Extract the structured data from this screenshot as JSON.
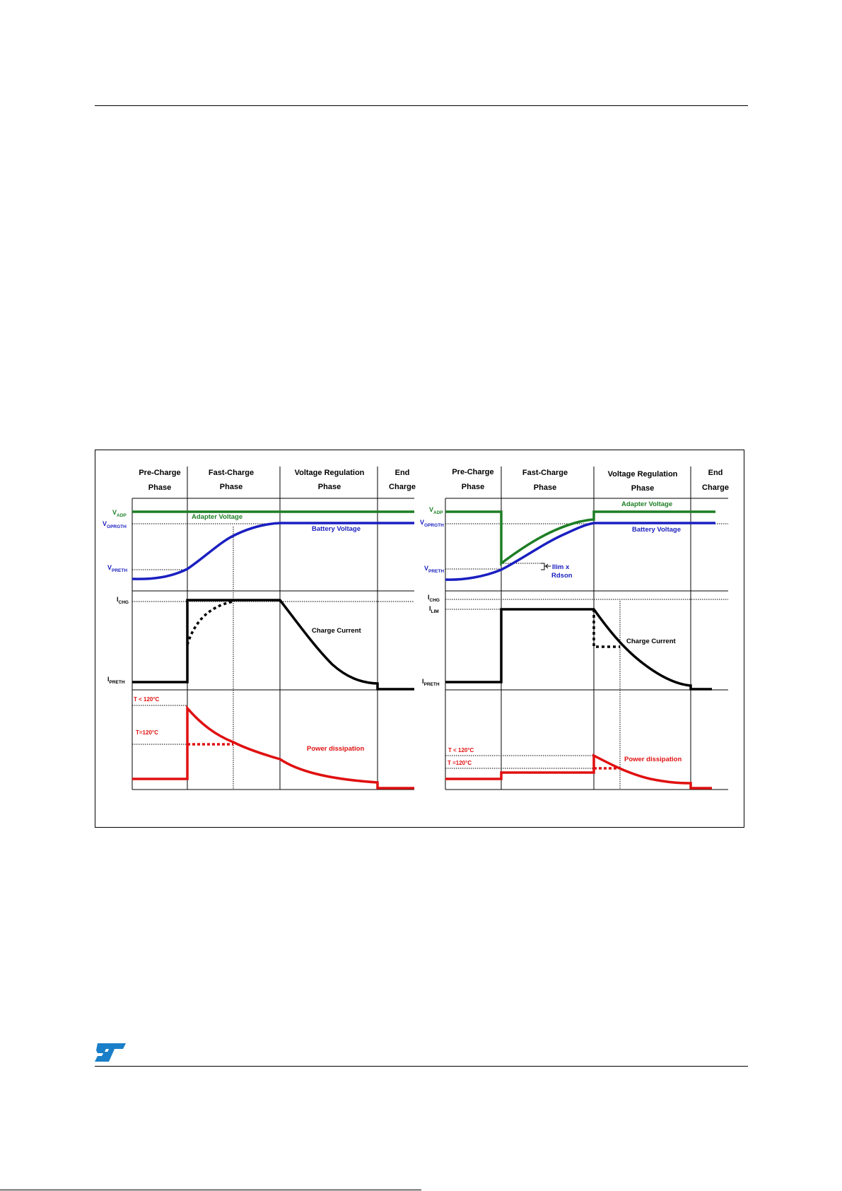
{
  "page": {
    "logo": "ST"
  },
  "figure": {
    "colors": {
      "adapter": "#1e7e25",
      "battery": "#1a1fc0",
      "current": "#000000",
      "power": "#e01010",
      "grid": "#000000"
    },
    "left": {
      "phases": [
        {
          "line1": "Pre-Charge",
          "line2": "Phase"
        },
        {
          "line1": "Fast-Charge",
          "line2": "Phase"
        },
        {
          "line1": "Voltage Regulation",
          "line2": "Phase"
        },
        {
          "line1": "End",
          "line2": "Charge"
        }
      ],
      "adapter_label": "Adapter Voltage",
      "battery_label": "Battery Voltage",
      "current_label": "Charge Current",
      "power_label": "Power dissipation",
      "vadp": {
        "main": "V",
        "sub": "ADP"
      },
      "voprgth": {
        "main": "V",
        "sub": "OPRGTH"
      },
      "vpreth": {
        "main": "V",
        "sub": "PRETH"
      },
      "ichg": {
        "main": "I",
        "sub": "CHG"
      },
      "ipreth": {
        "main": "I",
        "sub": "PRETH"
      },
      "t_le": "T < 120°C",
      "t_eq": "T=120°C"
    },
    "right": {
      "phases": [
        {
          "line1": "Pre-Charge",
          "line2": "Phase"
        },
        {
          "line1": "Fast-Charge",
          "line2": "Phase"
        },
        {
          "line1": "Voltage Regulation",
          "line2": "Phase"
        },
        {
          "line1": "End",
          "line2": "Charge"
        }
      ],
      "adapter_label": "Adapter Voltage",
      "battery_label": "Battery Voltage",
      "current_label": "Charge Current",
      "power_label": "Power dissipation",
      "drop_label_1": "Ilim x",
      "drop_label_2": "Rdson",
      "vadp": {
        "main": "V",
        "sub": "ADP"
      },
      "voprgth": {
        "main": "V",
        "sub": "OPRGTH"
      },
      "vpreth": {
        "main": "V",
        "sub": "PRETH"
      },
      "ichg": {
        "main": "I",
        "sub": "CHG"
      },
      "ilim": {
        "main": "I",
        "sub": "LIM"
      },
      "ipreth": {
        "main": "I",
        "sub": "PRETH"
      },
      "t_le": "T < 120°C",
      "t_eq": "T =120°C"
    }
  }
}
